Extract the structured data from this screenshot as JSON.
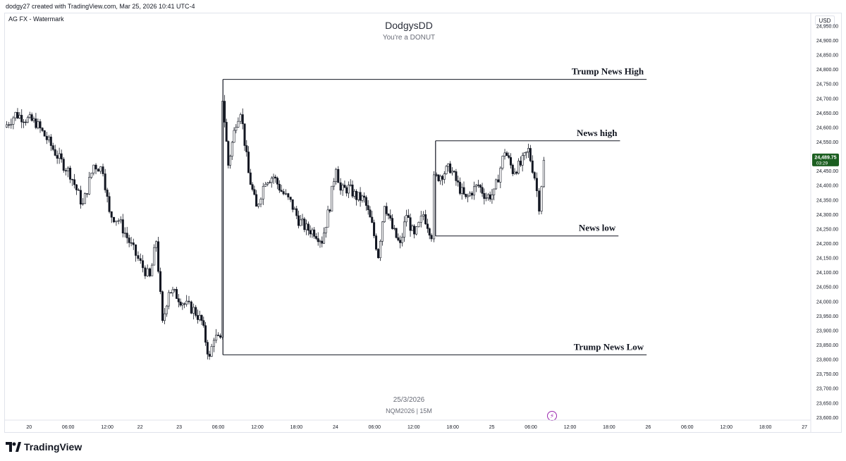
{
  "header": {
    "credit": "dodgy27 created with TradingView.com, Mar 25, 2026 10:41 UTC-4",
    "symbol_label": "AG FX - Watermark",
    "currency_button": "USD"
  },
  "watermark": {
    "title": "DodgysDD",
    "subtitle": "You're a DONUT",
    "date": "25/3/2026",
    "ticker": "NQM2026 | 15M"
  },
  "brand": {
    "name": "TradingView"
  },
  "colors": {
    "bull": "#131722",
    "bear": "#131722",
    "price_badge": "#1b5e20",
    "line": "#131722"
  },
  "chart_data": {
    "type": "candlestick",
    "symbol": "NQM2026",
    "timeframe": "15M",
    "ylim": [
      23590,
      24990
    ],
    "y_ticks": [
      23600,
      23650,
      23700,
      23750,
      23800,
      23850,
      23900,
      23950,
      24000,
      24050,
      24100,
      24150,
      24200,
      24250,
      24300,
      24350,
      24400,
      24450,
      24500,
      24550,
      24600,
      24650,
      24700,
      24750,
      24800,
      24850,
      24900,
      24950
    ],
    "y_tick_labels": [
      "23,600.00",
      "23,650.00",
      "23,700.00",
      "23,750.00",
      "23,800.00",
      "23,850.00",
      "23,900.00",
      "23,950.00",
      "24,000.00",
      "24,050.00",
      "24,100.00",
      "24,150.00",
      "24,200.00",
      "24,250.00",
      "24,300.00",
      "24,350.00",
      "24,400.00",
      "24,450.00",
      "24,500.00",
      "24,550.00",
      "24,600.00",
      "24,650.00",
      "24,700.00",
      "24,750.00",
      "24,800.00",
      "24,850.00",
      "24,900.00",
      "24,950.00"
    ],
    "x_ticks": [
      {
        "label": "20",
        "pos": 0.0
      },
      {
        "label": "06:00",
        "pos": 0.25
      },
      {
        "label": "12:00",
        "pos": 0.5
      },
      {
        "label": "22",
        "pos": 0.71
      },
      {
        "label": "23",
        "pos": 0.96
      },
      {
        "label": "06:00",
        "pos": 1.21
      },
      {
        "label": "12:00",
        "pos": 1.46
      },
      {
        "label": "18:00",
        "pos": 1.71
      },
      {
        "label": "24",
        "pos": 1.96
      },
      {
        "label": "06:00",
        "pos": 2.21
      },
      {
        "label": "12:00",
        "pos": 2.46
      },
      {
        "label": "18:00",
        "pos": 2.71
      },
      {
        "label": "25",
        "pos": 2.96
      },
      {
        "label": "06:00",
        "pos": 3.21
      },
      {
        "label": "12:00",
        "pos": 3.46
      },
      {
        "label": "18:00",
        "pos": 3.71
      },
      {
        "label": "26",
        "pos": 3.96
      },
      {
        "label": "06:00",
        "pos": 4.21
      },
      {
        "label": "12:00",
        "pos": 4.46
      },
      {
        "label": "18:00",
        "pos": 4.71
      },
      {
        "label": "27",
        "pos": 4.96
      }
    ],
    "x_range": [
      -0.15,
      5.0
    ],
    "last_price": "24,489.75",
    "countdown": "03:29",
    "last_value": 24489.75,
    "levels": [
      {
        "name": "Trump News High",
        "value": 24765,
        "start": 1.24,
        "end": 3.95
      },
      {
        "name": "News high",
        "value": 24553,
        "start": 2.6,
        "end": 3.78
      },
      {
        "name": "News low",
        "value": 24225,
        "start": 2.6,
        "end": 3.77
      },
      {
        "name": "Trump News Low",
        "value": 23815,
        "start": 1.24,
        "end": 3.95
      }
    ],
    "news_spike": {
      "x": 1.24,
      "low": 23815,
      "high": 24765
    },
    "news_spike2": {
      "x": 2.6,
      "low": 24225,
      "high": 24553
    },
    "path_keypoints": [
      [
        -0.15,
        24600
      ],
      [
        -0.08,
        24645
      ],
      [
        0.05,
        24615
      ],
      [
        0.12,
        24560
      ],
      [
        0.2,
        24490
      ],
      [
        0.27,
        24440
      ],
      [
        0.35,
        24330
      ],
      [
        0.42,
        24470
      ],
      [
        0.48,
        24455
      ],
      [
        0.52,
        24300
      ],
      [
        0.58,
        24280
      ],
      [
        0.66,
        24190
      ],
      [
        0.72,
        24130
      ],
      [
        0.78,
        24080
      ],
      [
        0.82,
        24210
      ],
      [
        0.86,
        23920
      ],
      [
        0.9,
        24040
      ],
      [
        0.95,
        24020
      ],
      [
        1.0,
        23990
      ],
      [
        1.06,
        23970
      ],
      [
        1.11,
        23930
      ],
      [
        1.16,
        23800
      ],
      [
        1.19,
        23880
      ],
      [
        1.23,
        23860
      ],
      [
        1.245,
        24700
      ],
      [
        1.28,
        24470
      ],
      [
        1.33,
        24620
      ],
      [
        1.36,
        24660
      ],
      [
        1.41,
        24440
      ],
      [
        1.46,
        24320
      ],
      [
        1.52,
        24420
      ],
      [
        1.57,
        24430
      ],
      [
        1.62,
        24380
      ],
      [
        1.68,
        24340
      ],
      [
        1.73,
        24280
      ],
      [
        1.78,
        24250
      ],
      [
        1.83,
        24240
      ],
      [
        1.88,
        24210
      ],
      [
        1.93,
        24330
      ],
      [
        1.97,
        24470
      ],
      [
        2.0,
        24380
      ],
      [
        2.05,
        24390
      ],
      [
        2.1,
        24360
      ],
      [
        2.15,
        24350
      ],
      [
        2.2,
        24260
      ],
      [
        2.24,
        24160
      ],
      [
        2.28,
        24340
      ],
      [
        2.33,
        24250
      ],
      [
        2.38,
        24190
      ],
      [
        2.42,
        24300
      ],
      [
        2.47,
        24220
      ],
      [
        2.53,
        24300
      ],
      [
        2.58,
        24230
      ],
      [
        2.6,
        24420
      ],
      [
        2.65,
        24440
      ],
      [
        2.7,
        24460
      ],
      [
        2.75,
        24400
      ],
      [
        2.8,
        24350
      ],
      [
        2.84,
        24380
      ],
      [
        2.88,
        24400
      ],
      [
        2.93,
        24360
      ],
      [
        2.98,
        24370
      ],
      [
        3.05,
        24520
      ],
      [
        3.1,
        24450
      ],
      [
        3.15,
        24470
      ],
      [
        3.2,
        24520
      ],
      [
        3.24,
        24430
      ],
      [
        3.27,
        24330
      ],
      [
        3.3,
        24480
      ]
    ]
  }
}
